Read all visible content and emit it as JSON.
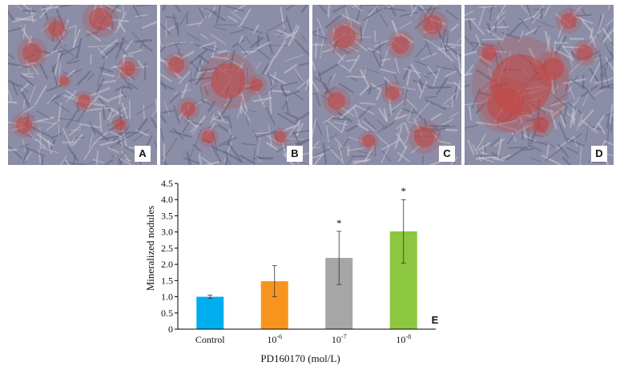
{
  "panels": [
    {
      "letter": "A"
    },
    {
      "letter": "B"
    },
    {
      "letter": "C"
    },
    {
      "letter": "D"
    }
  ],
  "colors": {
    "cell_background": "#8c8da6",
    "stain": "#c4433f"
  },
  "chart_data": {
    "type": "bar",
    "panel_label": "E",
    "xlabel": "PD160170 (mol/L)",
    "ylabel": "Mineralized nodules",
    "ylim": [
      0,
      4.5
    ],
    "yticks": [
      "0",
      "0.5",
      "1.0",
      "1.5",
      "2.0",
      "2.5",
      "3.0",
      "3.5",
      "4.0",
      "4.5"
    ],
    "categories": [
      {
        "base": "Control",
        "exp": ""
      },
      {
        "base": "10",
        "exp": "-6"
      },
      {
        "base": "10",
        "exp": "-7"
      },
      {
        "base": "10",
        "exp": "-8"
      }
    ],
    "values": [
      1.0,
      1.48,
      2.2,
      3.02
    ],
    "errors": [
      0.05,
      0.48,
      0.82,
      0.98
    ],
    "significance": [
      "",
      "",
      "*",
      "*"
    ],
    "colors": [
      "#00aeef",
      "#f7941d",
      "#a6a6a6",
      "#8dc63f"
    ]
  }
}
